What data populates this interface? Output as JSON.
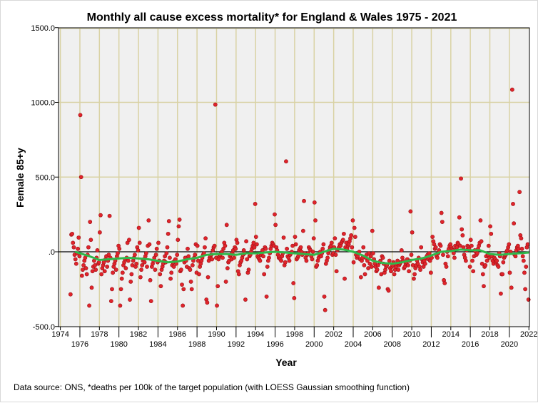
{
  "chart_data": {
    "type": "scatter",
    "title": "Monthly all cause excess mortality* for England & Wales 1975 - 2021",
    "xlabel": "Year",
    "ylabel": "Female 85+y",
    "xlim": [
      1974,
      2022.4
    ],
    "ylim": [
      -500,
      1500
    ],
    "x_ticks": [
      "1974",
      "1976",
      "1978",
      "1980",
      "1982",
      "1984",
      "1986",
      "1988",
      "1990",
      "1992",
      "1994",
      "1996",
      "1998",
      "2000",
      "2002",
      "2004",
      "2006",
      "2008",
      "2010",
      "2012",
      "2014",
      "2016",
      "2018",
      "2020",
      "2022"
    ],
    "y_ticks": [
      {
        "value": 1500,
        "label": "1500.0"
      },
      {
        "value": 1000,
        "label": "1000.0"
      },
      {
        "value": 500,
        "label": "500.0"
      },
      {
        "value": 0,
        "label": ".0"
      },
      {
        "value": -500,
        "label": "-500.0"
      }
    ],
    "grid": true,
    "colors": {
      "points": "#e0242b",
      "point_edge": "#9a1015",
      "loess": "#2fb84a",
      "plot_bg": "#f0f0f0",
      "grid": "#d9d2a4"
    },
    "monthly_values_by_year": {
      "1975": [
        -285,
        115,
        120,
        60,
        30,
        -20,
        -50,
        -80,
        -10,
        20,
        95,
        -30
      ],
      "1976": [
        915,
        500,
        -160,
        -120,
        -90,
        -60,
        -40,
        -110,
        -150,
        -20,
        30,
        -360
      ],
      "1977": [
        200,
        80,
        -240,
        -130,
        -100,
        -60,
        -90,
        -120,
        -40,
        10,
        -80,
        -70
      ],
      "1978": [
        130,
        245,
        -150,
        -110,
        -90,
        -70,
        -130,
        -50,
        -30,
        -100,
        -60,
        -20
      ],
      "1979": [
        240,
        -40,
        -330,
        -250,
        -140,
        -100,
        -80,
        -60,
        -120,
        -30,
        -10,
        40
      ],
      "1980": [
        20,
        -360,
        -250,
        -180,
        -140,
        -90,
        -70,
        -50,
        -110,
        -40,
        60,
        -60
      ],
      "1981": [
        80,
        -320,
        -200,
        -150,
        -90,
        -60,
        -40,
        -20,
        -100,
        -80,
        30,
        10
      ],
      "1982": [
        160,
        60,
        -170,
        -120,
        -90,
        -60,
        -50,
        -70,
        -30,
        -10,
        -100,
        40
      ],
      "1983": [
        210,
        50,
        -190,
        -330,
        -100,
        -80,
        -60,
        -40,
        -120,
        -20,
        20,
        -70
      ],
      "1984": [
        60,
        -60,
        -150,
        -230,
        -120,
        -100,
        -80,
        -60,
        -30,
        -70,
        -10,
        30
      ],
      "1985": [
        120,
        205,
        -40,
        -180,
        -140,
        -90,
        -70,
        -100,
        -60,
        -50,
        -80,
        -20
      ],
      "1986": [
        80,
        170,
        215,
        -130,
        -120,
        -220,
        -360,
        -250,
        -70,
        -40,
        -60,
        -100
      ],
      "1987": [
        20,
        -30,
        -110,
        -120,
        -200,
        -250,
        -90,
        -60,
        -40,
        -20,
        50,
        -140
      ],
      "1988": [
        40,
        -60,
        -150,
        -100,
        -80,
        -60,
        -40,
        -20,
        -10,
        30,
        90,
        -320
      ],
      "1989": [
        -340,
        -170,
        -60,
        -40,
        -30,
        -20,
        -50,
        10,
        30,
        40,
        985,
        -40
      ],
      "1990": [
        -360,
        -230,
        -50,
        -30,
        -20,
        -10,
        0,
        -40,
        20,
        60,
        40,
        -200
      ],
      "1991": [
        180,
        -110,
        -70,
        -60,
        -30,
        -20,
        -50,
        -10,
        10,
        -40,
        30,
        20
      ],
      "1992": [
        80,
        60,
        -130,
        -150,
        -90,
        -70,
        -60,
        -40,
        -20,
        10,
        -10,
        -320
      ],
      "1993": [
        70,
        -50,
        -140,
        -120,
        -30,
        -20,
        0,
        20,
        40,
        60,
        30,
        320
      ],
      "1994": [
        100,
        50,
        -30,
        -40,
        -50,
        -60,
        -20,
        -10,
        10,
        -30,
        -150,
        30
      ],
      "1995": [
        20,
        -300,
        -100,
        -60,
        -40,
        -10,
        20,
        40,
        60,
        50,
        40,
        250
      ],
      "1996": [
        180,
        30,
        10,
        -20,
        -40,
        -30,
        -50,
        -60,
        -30,
        -10,
        95,
        -90
      ],
      "1997": [
        -70,
        605,
        20,
        -30,
        -40,
        -60,
        -20,
        -10,
        0,
        40,
        -210,
        -310
      ],
      "1998": [
        100,
        50,
        -50,
        -40,
        -30,
        10,
        20,
        30,
        0,
        -20,
        140,
        340
      ],
      "1999": [
        -10,
        -40,
        -60,
        -20,
        -10,
        30,
        20,
        10,
        -30,
        -50,
        0,
        90
      ],
      "2000": [
        330,
        210,
        -100,
        -90,
        -60,
        -40,
        -20,
        0,
        -30,
        -10,
        20,
        50
      ],
      "2001": [
        -300,
        -390,
        -80,
        -60,
        -40,
        -10,
        10,
        30,
        40,
        60,
        -20,
        -10
      ],
      "2002": [
        30,
        90,
        -20,
        -130,
        10,
        20,
        30,
        50,
        40,
        60,
        70,
        80
      ],
      "2003": [
        120,
        -180,
        30,
        60,
        20,
        40,
        50,
        70,
        90,
        110,
        30,
        210
      ],
      "2004": [
        -70,
        160,
        100,
        -20,
        -40,
        -30,
        -10,
        0,
        -50,
        -170,
        -60,
        -40
      ],
      "2005": [
        30,
        -90,
        -150,
        -40,
        -20,
        -60,
        -110,
        -10,
        -80,
        -30,
        -100,
        140
      ],
      "2006": [
        -10,
        -50,
        -80,
        -100,
        -130,
        -120,
        -90,
        -240,
        -70,
        -60,
        -150,
        -30
      ],
      "2007": [
        -40,
        -80,
        -140,
        -120,
        -100,
        -90,
        -250,
        -260,
        -60,
        -110,
        -130,
        -100
      ],
      "2008": [
        -90,
        -70,
        -150,
        -120,
        -100,
        -80,
        -60,
        -120,
        -90,
        -80,
        -70,
        10
      ],
      "2009": [
        -40,
        -60,
        -110,
        -100,
        -80,
        -70,
        -50,
        -90,
        -130,
        -60,
        270,
        -20
      ],
      "2010": [
        130,
        -90,
        -180,
        -150,
        -110,
        -90,
        -60,
        -80,
        -40,
        -100,
        -120,
        30
      ],
      "2011": [
        -50,
        -70,
        -100,
        -60,
        -80,
        -40,
        -30,
        -20,
        -50,
        -10,
        -60,
        -140
      ],
      "2012": [
        -40,
        100,
        70,
        50,
        20,
        30,
        -30,
        -40,
        -10,
        10,
        50,
        40
      ],
      "2013": [
        260,
        200,
        -20,
        -190,
        -210,
        -80,
        -100,
        0,
        -30,
        20,
        40,
        50
      ],
      "2014": [
        30,
        20,
        10,
        -10,
        -40,
        40,
        20,
        30,
        60,
        50,
        230,
        40
      ],
      "2015": [
        490,
        150,
        110,
        30,
        -20,
        -40,
        -60,
        10,
        40,
        30,
        20,
        -100
      ],
      "2016": [
        80,
        40,
        -60,
        -130,
        -30,
        10,
        0,
        -20,
        -10,
        20,
        40,
        60
      ],
      "2017": [
        210,
        70,
        -80,
        -150,
        -230,
        -100,
        -90,
        -30,
        -60,
        -20,
        40,
        -40
      ],
      "2018": [
        170,
        120,
        -30,
        -60,
        -80,
        -40,
        -50,
        -70,
        -60,
        -90,
        -100,
        -10
      ],
      "2019": [
        -30,
        -280,
        -150,
        -150,
        -70,
        -40,
        -30,
        -20,
        0,
        10,
        30,
        50
      ],
      "2020": [
        -140,
        0,
        -240,
        1085,
        320,
        190,
        -20,
        -30,
        10,
        30,
        40,
        20
      ],
      "2021": [
        400,
        110,
        90,
        20,
        -30,
        -60,
        -140,
        -250,
        -100,
        30,
        50,
        -320
      ]
    },
    "loess": [
      [
        1975.5,
        0
      ],
      [
        1976,
        -10
      ],
      [
        1977,
        -30
      ],
      [
        1978,
        -55
      ],
      [
        1979,
        -50
      ],
      [
        1980,
        -45
      ],
      [
        1981,
        -40
      ],
      [
        1982,
        -45
      ],
      [
        1983,
        -50
      ],
      [
        1984,
        -60
      ],
      [
        1985,
        -70
      ],
      [
        1986,
        -65
      ],
      [
        1987,
        -50
      ],
      [
        1988,
        -40
      ],
      [
        1989,
        -20
      ],
      [
        1990,
        -15
      ],
      [
        1991,
        -15
      ],
      [
        1992,
        -20
      ],
      [
        1993,
        -10
      ],
      [
        1994,
        -10
      ],
      [
        1995,
        -5
      ],
      [
        1996,
        0
      ],
      [
        1997,
        -5
      ],
      [
        1998,
        -10
      ],
      [
        1999,
        -15
      ],
      [
        2000,
        -20
      ],
      [
        2001,
        0
      ],
      [
        2002,
        20
      ],
      [
        2003,
        15
      ],
      [
        2004,
        0
      ],
      [
        2005,
        -25
      ],
      [
        2006,
        -60
      ],
      [
        2007,
        -75
      ],
      [
        2008,
        -80
      ],
      [
        2009,
        -70
      ],
      [
        2010,
        -55
      ],
      [
        2011,
        -45
      ],
      [
        2012,
        -25
      ],
      [
        2013,
        0
      ],
      [
        2014,
        5
      ],
      [
        2015,
        15
      ],
      [
        2016,
        10
      ],
      [
        2017,
        10
      ],
      [
        2018,
        -15
      ],
      [
        2019,
        -20
      ],
      [
        2020,
        -15
      ],
      [
        2021,
        -10
      ],
      [
        2022,
        -5
      ]
    ]
  },
  "footer": "Data source: ONS, *deaths per 100k of the target population (with LOESS Gaussian smoothing function)"
}
